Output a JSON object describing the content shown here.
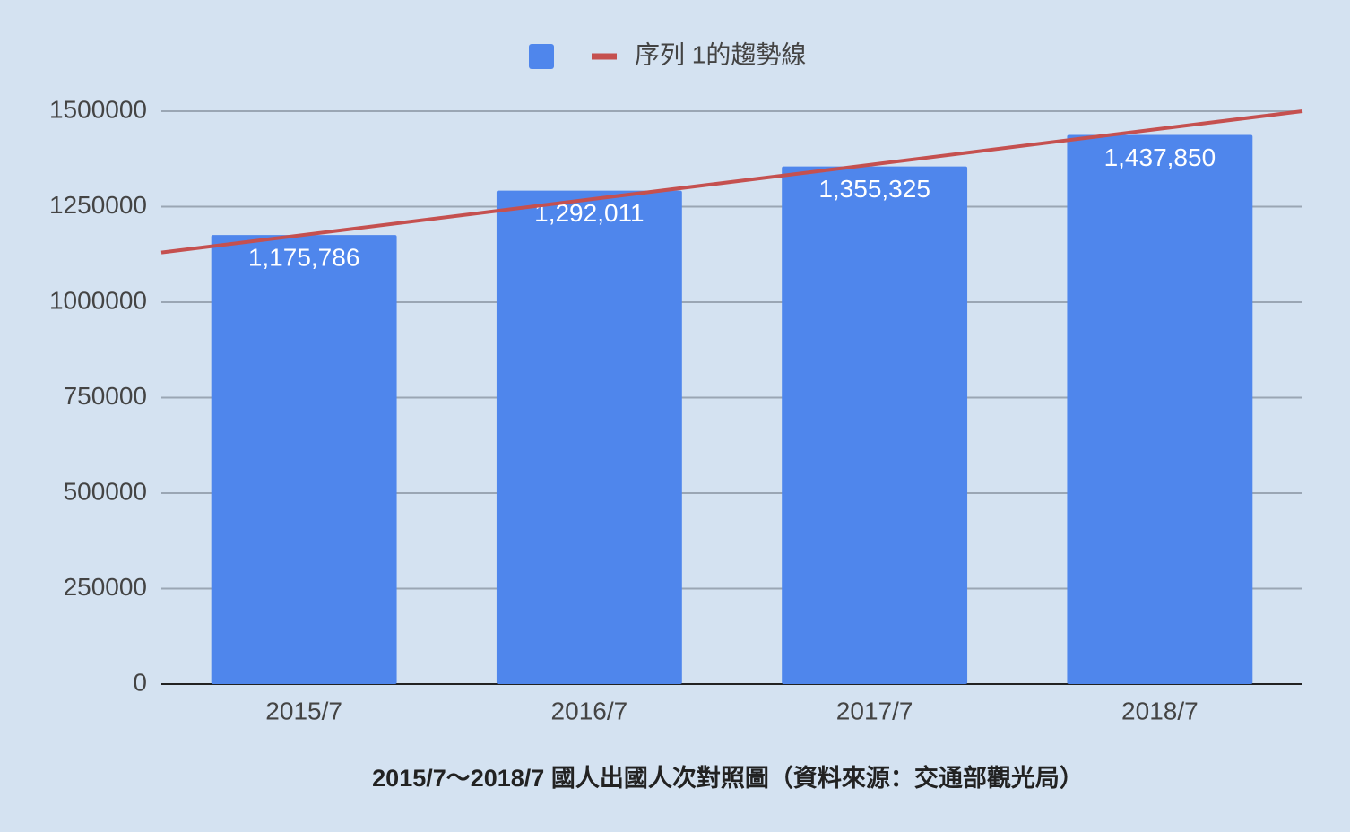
{
  "chart_data": {
    "type": "bar",
    "title": "2015/7～2018/7 國人出國人次對照圖（資料來源：交通部觀光局）",
    "categories": [
      "2015/7",
      "2016/7",
      "2017/7",
      "2018/7"
    ],
    "series": [
      {
        "color": "#4f86ec",
        "values": [
          1175786,
          1292011,
          1355325,
          1437850
        ],
        "value_labels": [
          "1,175,786",
          "1,292,011",
          "1,355,325",
          "1,437,850"
        ]
      }
    ],
    "trendline": {
      "name": "序列 1的趨勢線",
      "color": "#c5504f",
      "values": [
        1130000,
        1500000
      ]
    },
    "ylim": [
      0,
      1500000
    ],
    "yticks": [
      0,
      250000,
      500000,
      750000,
      1000000,
      1250000,
      1500000
    ],
    "grid": true
  }
}
